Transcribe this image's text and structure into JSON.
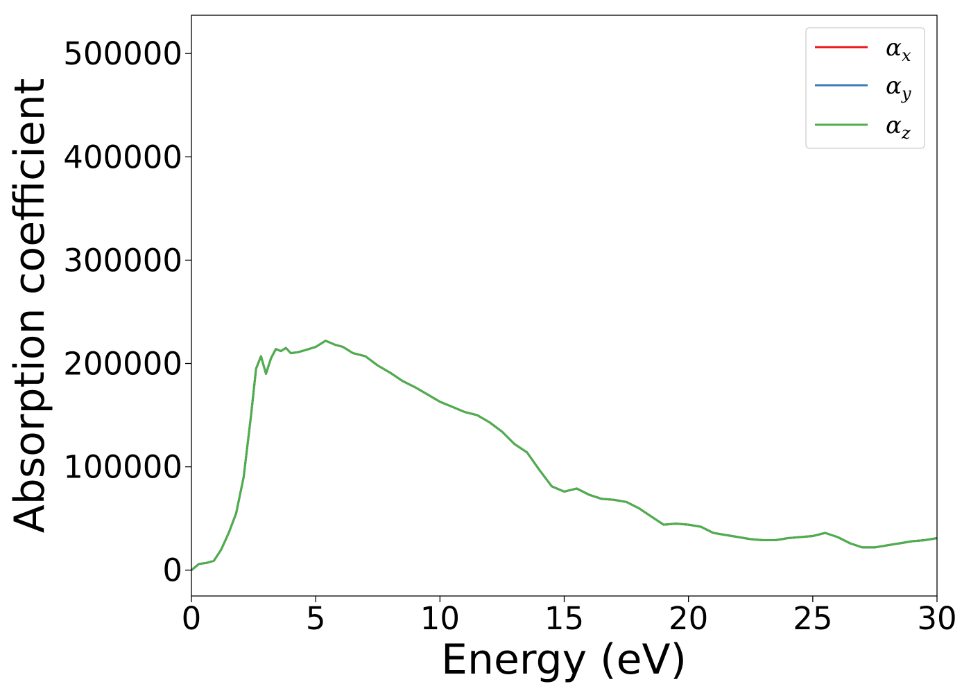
{
  "chart_data": {
    "type": "line",
    "title": "",
    "xlabel": "Energy (eV)",
    "ylabel": "Absorption coefficient",
    "xlim": [
      0,
      30
    ],
    "ylim": [
      -25000,
      537000
    ],
    "xticks": [
      0,
      5,
      10,
      15,
      20,
      25,
      30
    ],
    "yticks": [
      0,
      100000,
      200000,
      300000,
      400000,
      500000
    ],
    "xtick_labels": [
      "0",
      "5",
      "10",
      "15",
      "20",
      "25",
      "30"
    ],
    "ytick_labels": [
      "0",
      "100000",
      "200000",
      "300000",
      "400000",
      "500000"
    ],
    "grid": false,
    "legend_position": "top-right",
    "x": [
      0,
      0.3,
      0.6,
      0.9,
      1.2,
      1.5,
      1.8,
      2.1,
      2.4,
      2.6,
      2.8,
      3.0,
      3.2,
      3.4,
      3.6,
      3.8,
      4.0,
      4.3,
      4.6,
      5.0,
      5.4,
      5.8,
      6.1,
      6.5,
      7.0,
      7.5,
      8.0,
      8.5,
      9.0,
      9.5,
      10.0,
      10.5,
      11.0,
      11.5,
      12.0,
      12.5,
      13.0,
      13.5,
      14.0,
      14.5,
      15.0,
      15.5,
      16.0,
      16.5,
      17.0,
      17.5,
      18.0,
      18.5,
      19.0,
      19.5,
      20.0,
      20.5,
      21.0,
      21.5,
      22.0,
      22.5,
      23.0,
      23.5,
      24.0,
      24.5,
      25.0,
      25.5,
      26.0,
      26.5,
      27.0,
      27.5,
      28.0,
      28.5,
      29.0,
      29.5,
      30.0
    ],
    "series": [
      {
        "name": "αx",
        "color": "#e41a1c",
        "values": [
          0,
          6000,
          7000,
          9000,
          20000,
          36000,
          55000,
          90000,
          150000,
          195000,
          207000,
          190000,
          205000,
          214000,
          212000,
          215000,
          210000,
          211000,
          213000,
          216000,
          222000,
          218000,
          216000,
          210000,
          207000,
          198000,
          191000,
          183000,
          177000,
          170000,
          163000,
          158000,
          153000,
          150000,
          143000,
          134000,
          122000,
          114000,
          97000,
          81000,
          76000,
          79000,
          73000,
          69000,
          68000,
          66000,
          60000,
          52000,
          44000,
          45000,
          44000,
          42000,
          36000,
          34000,
          32000,
          30000,
          29000,
          29000,
          31000,
          32000,
          33000,
          36000,
          32000,
          26000,
          22000,
          22000,
          24000,
          26000,
          28000,
          29000,
          31000
        ]
      },
      {
        "name": "αy",
        "color": "#377eb8",
        "values": [
          0,
          6000,
          7000,
          9000,
          20000,
          36000,
          55000,
          90000,
          150000,
          195000,
          207000,
          190000,
          205000,
          214000,
          212000,
          215000,
          210000,
          211000,
          213000,
          216000,
          222000,
          218000,
          216000,
          210000,
          207000,
          198000,
          191000,
          183000,
          177000,
          170000,
          163000,
          158000,
          153000,
          150000,
          143000,
          134000,
          122000,
          114000,
          97000,
          81000,
          76000,
          79000,
          73000,
          69000,
          68000,
          66000,
          60000,
          52000,
          44000,
          45000,
          44000,
          42000,
          36000,
          34000,
          32000,
          30000,
          29000,
          29000,
          31000,
          32000,
          33000,
          36000,
          32000,
          26000,
          22000,
          22000,
          24000,
          26000,
          28000,
          29000,
          31000
        ]
      },
      {
        "name": "αz",
        "color": "#4daf4a",
        "values": [
          0,
          6000,
          7000,
          9000,
          20000,
          36000,
          55000,
          90000,
          150000,
          195000,
          207000,
          190000,
          205000,
          214000,
          212000,
          215000,
          210000,
          211000,
          213000,
          216000,
          222000,
          218000,
          216000,
          210000,
          207000,
          198000,
          191000,
          183000,
          177000,
          170000,
          163000,
          158000,
          153000,
          150000,
          143000,
          134000,
          122000,
          114000,
          97000,
          81000,
          76000,
          79000,
          73000,
          69000,
          68000,
          66000,
          60000,
          52000,
          44000,
          45000,
          44000,
          42000,
          36000,
          34000,
          32000,
          30000,
          29000,
          29000,
          31000,
          32000,
          33000,
          36000,
          32000,
          26000,
          22000,
          22000,
          24000,
          26000,
          28000,
          29000,
          31000
        ]
      }
    ],
    "legend": [
      {
        "symbol": "α",
        "sub": "x"
      },
      {
        "symbol": "α",
        "sub": "y"
      },
      {
        "symbol": "α",
        "sub": "z"
      }
    ]
  }
}
